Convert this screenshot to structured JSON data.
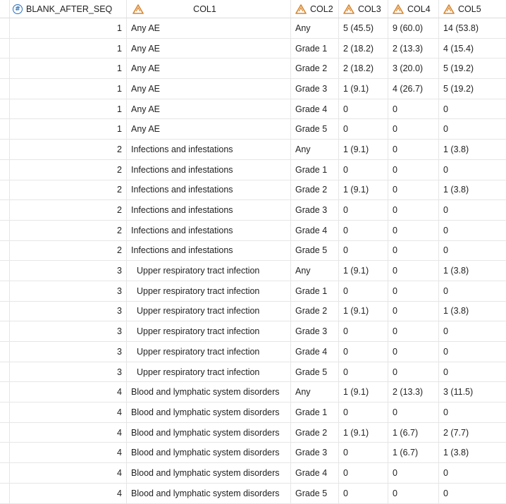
{
  "columns": {
    "blank_after_seq": "BLANK_AFTER_SEQ",
    "col1": "COL1",
    "col2": "COL2",
    "col3": "COL3",
    "col4": "COL4",
    "col5": "COL5"
  },
  "icons": {
    "numeric": "numeric-column-icon",
    "character": "character-column-icon"
  },
  "colors": {
    "numeric_icon": "#2a6fb8",
    "character_icon": "#d6862e"
  },
  "rows": [
    {
      "seq": "1",
      "col1": "Any AE",
      "col2": "Any",
      "col3": "5 (45.5)",
      "col4": "9 (60.0)",
      "col5": "14 (53.8)"
    },
    {
      "seq": "1",
      "col1": "Any AE",
      "col2": "Grade 1",
      "col3": "2 (18.2)",
      "col4": "2 (13.3)",
      "col5": "4 (15.4)"
    },
    {
      "seq": "1",
      "col1": "Any AE",
      "col2": "Grade 2",
      "col3": "2 (18.2)",
      "col4": "3 (20.0)",
      "col5": "5 (19.2)"
    },
    {
      "seq": "1",
      "col1": "Any AE",
      "col2": "Grade 3",
      "col3": "1 (9.1)",
      "col4": "4 (26.7)",
      "col5": "5 (19.2)"
    },
    {
      "seq": "1",
      "col1": "Any AE",
      "col2": "Grade 4",
      "col3": "0",
      "col4": "0",
      "col5": "0"
    },
    {
      "seq": "1",
      "col1": "Any AE",
      "col2": "Grade 5",
      "col3": "0",
      "col4": "0",
      "col5": "0"
    },
    {
      "seq": "2",
      "col1": "Infections and infestations",
      "col2": "Any",
      "col3": "1 (9.1)",
      "col4": "0",
      "col5": "1 (3.8)"
    },
    {
      "seq": "2",
      "col1": "Infections and infestations",
      "col2": "Grade 1",
      "col3": "0",
      "col4": "0",
      "col5": "0"
    },
    {
      "seq": "2",
      "col1": "Infections and infestations",
      "col2": "Grade 2",
      "col3": "1 (9.1)",
      "col4": "0",
      "col5": "1 (3.8)"
    },
    {
      "seq": "2",
      "col1": "Infections and infestations",
      "col2": "Grade 3",
      "col3": "0",
      "col4": "0",
      "col5": "0"
    },
    {
      "seq": "2",
      "col1": "Infections and infestations",
      "col2": "Grade 4",
      "col3": "0",
      "col4": "0",
      "col5": "0"
    },
    {
      "seq": "2",
      "col1": "Infections and infestations",
      "col2": "Grade 5",
      "col3": "0",
      "col4": "0",
      "col5": "0"
    },
    {
      "seq": "3",
      "col1": "Upper respiratory tract infection",
      "col2": "Any",
      "col3": "1 (9.1)",
      "col4": "0",
      "col5": "1 (3.8)"
    },
    {
      "seq": "3",
      "col1": "Upper respiratory tract infection",
      "col2": "Grade 1",
      "col3": "0",
      "col4": "0",
      "col5": "0"
    },
    {
      "seq": "3",
      "col1": "Upper respiratory tract infection",
      "col2": "Grade 2",
      "col3": "1 (9.1)",
      "col4": "0",
      "col5": "1 (3.8)"
    },
    {
      "seq": "3",
      "col1": "Upper respiratory tract infection",
      "col2": "Grade 3",
      "col3": "0",
      "col4": "0",
      "col5": "0"
    },
    {
      "seq": "3",
      "col1": "Upper respiratory tract infection",
      "col2": "Grade 4",
      "col3": "0",
      "col4": "0",
      "col5": "0"
    },
    {
      "seq": "3",
      "col1": "Upper respiratory tract infection",
      "col2": "Grade 5",
      "col3": "0",
      "col4": "0",
      "col5": "0"
    },
    {
      "seq": "4",
      "col1": "Blood and lymphatic system disorders",
      "col2": "Any",
      "col3": "1 (9.1)",
      "col4": "2 (13.3)",
      "col5": "3 (11.5)"
    },
    {
      "seq": "4",
      "col1": "Blood and lymphatic system disorders",
      "col2": "Grade 1",
      "col3": "0",
      "col4": "0",
      "col5": "0"
    },
    {
      "seq": "4",
      "col1": "Blood and lymphatic system disorders",
      "col2": "Grade 2",
      "col3": "1 (9.1)",
      "col4": "1 (6.7)",
      "col5": "2 (7.7)"
    },
    {
      "seq": "4",
      "col1": "Blood and lymphatic system disorders",
      "col2": "Grade 3",
      "col3": "0",
      "col4": "1 (6.7)",
      "col5": "1 (3.8)"
    },
    {
      "seq": "4",
      "col1": "Blood and lymphatic system disorders",
      "col2": "Grade 4",
      "col3": "0",
      "col4": "0",
      "col5": "0"
    },
    {
      "seq": "4",
      "col1": "Blood and lymphatic system disorders",
      "col2": "Grade 5",
      "col3": "0",
      "col4": "0",
      "col5": "0"
    }
  ]
}
